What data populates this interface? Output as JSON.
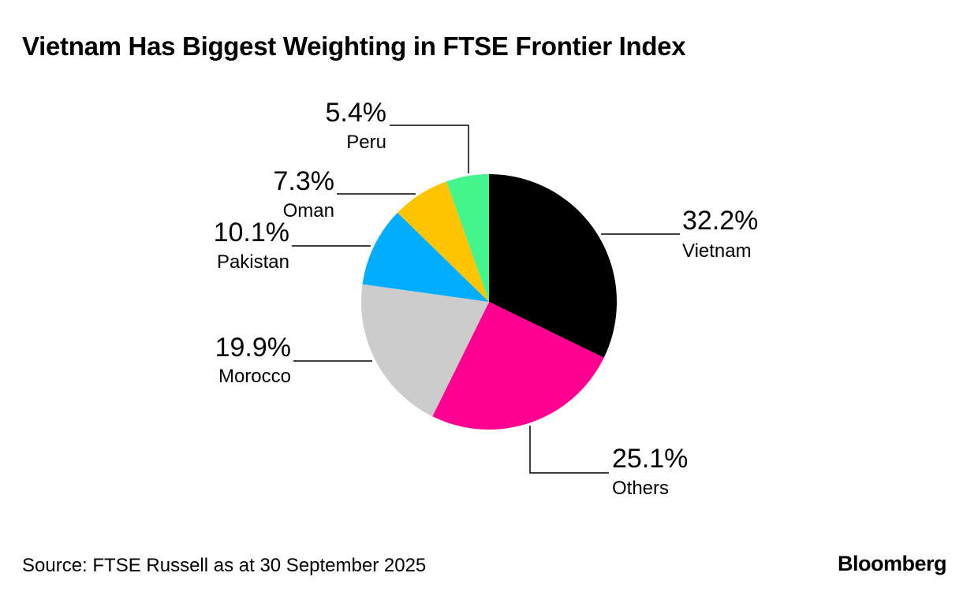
{
  "title": "Vietnam Has Biggest Weighting in FTSE Frontier Index",
  "source": "Source: FTSE Russell as at 30 September 2025",
  "brand": "Bloomberg",
  "chart_data": {
    "type": "pie",
    "title": "Vietnam Has Biggest Weighting in FTSE Frontier Index",
    "unit": "%",
    "slices": [
      {
        "label": "Vietnam",
        "value": 32.2,
        "value_label": "32.2%",
        "color": "#000000"
      },
      {
        "label": "Others",
        "value": 25.1,
        "value_label": "25.1%",
        "color": "#ff0090"
      },
      {
        "label": "Morocco",
        "value": 19.9,
        "value_label": "19.9%",
        "color": "#cccccc"
      },
      {
        "label": "Pakistan",
        "value": 10.1,
        "value_label": "10.1%",
        "color": "#00adff"
      },
      {
        "label": "Oman",
        "value": 7.3,
        "value_label": "7.3%",
        "color": "#ffc400"
      },
      {
        "label": "Peru",
        "value": 5.4,
        "value_label": "5.4%",
        "color": "#44f58e"
      }
    ]
  }
}
